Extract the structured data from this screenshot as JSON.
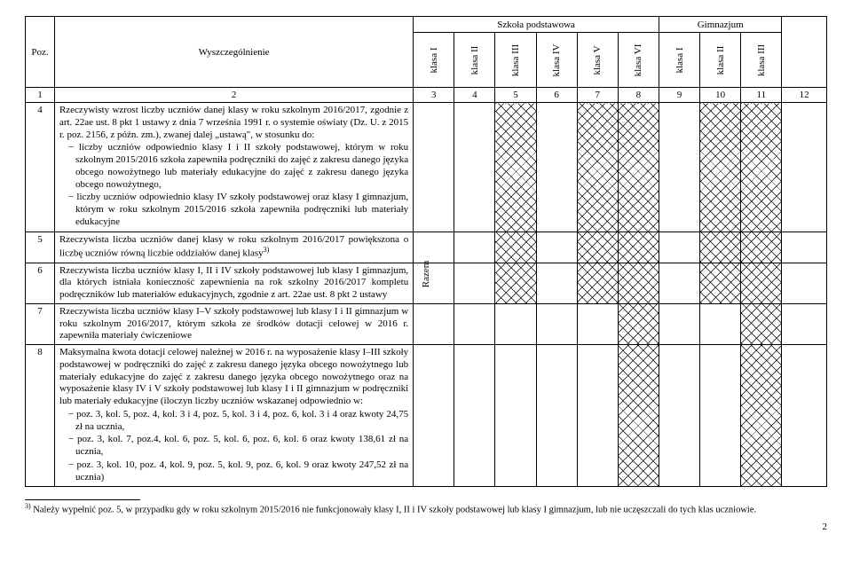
{
  "header": {
    "poz": "Poz.",
    "wys": "Wyszczególnienie",
    "group1": "Szkoła podstawowa",
    "group2": "Gimnazjum",
    "razem": "Razem",
    "klasy": [
      "klasa I",
      "klasa II",
      "klasa III",
      "klasa IV",
      "klasa V",
      "klasa VI",
      "klasa I",
      "klasa II",
      "klasa III"
    ]
  },
  "numrow": [
    "1",
    "2",
    "3",
    "4",
    "5",
    "6",
    "7",
    "8",
    "9",
    "10",
    "11",
    "12"
  ],
  "rows": [
    {
      "poz": "4",
      "desc_plain": "Rzeczywisty wzrost liczby uczniów danej klasy w roku szkolnym 2016/2017, zgodnie z art. 22ae ust. 8 pkt 1 ustawy z dnia 7 września 1991 r. o systemie oświaty (Dz. U. z 2015 r. poz. 2156, z późn. zm.), zwanej dalej „ustawą\", w stosunku do:",
      "bullets": [
        "liczby uczniów odpowiednio klasy I i II szkoły podstawowej, którym w roku szkolnym 2015/2016 szkoła zapewniła podręczniki do zajęć z zakresu danego języka obcego nowożytnego lub materiały edukacyjne do zajęć z zakresu danego języka obcego nowożytnego,",
        "liczby uczniów odpowiednio klasy IV szkoły podstawowej oraz klasy I gimnazjum, którym w roku szkolnym 2015/2016 szkoła zapewniła podręczniki lub materiały edukacyjne"
      ],
      "hatch_cols": [
        2,
        4,
        5,
        7,
        8
      ]
    },
    {
      "poz": "5",
      "desc_plain": "Rzeczywista liczba uczniów danej klasy w roku szkolnym 2016/2017 powiększona o liczbę uczniów równą liczbie oddziałów danej klasy",
      "sup": "3)",
      "hatch_cols": [
        2,
        4,
        5,
        7,
        8
      ]
    },
    {
      "poz": "6",
      "desc_plain": "Rzeczywista liczba uczniów klasy I, II i IV szkoły podstawowej lub klasy I gimnazjum, dla których istniała konieczność zapewnienia na rok szkolny 2016/2017 kompletu podręczników lub materiałów edukacyjnych, zgodnie z art. 22ae ust. 8 pkt 2 ustawy",
      "hatch_cols": [
        2,
        4,
        5,
        7,
        8
      ]
    },
    {
      "poz": "7",
      "desc_plain": "Rzeczywista liczba uczniów klasy I–V szkoły podstawowej lub klasy I i II gimnazjum w roku szkolnym 2016/2017, którym szkoła ze środków dotacji celowej w 2016 r. zapewniła materiały ćwiczeniowe",
      "hatch_cols": [
        5,
        8
      ]
    },
    {
      "poz": "8",
      "desc_plain": "Maksymalna kwota dotacji celowej należnej w 2016 r. na wyposażenie klasy I–III szkoły podstawowej w podręczniki do zajęć z zakresu danego języka obcego nowożytnego lub materiały edukacyjne do zajęć z zakresu danego języka obcego nowożytnego oraz na wyposażenie klasy IV i V szkoły podstawowej lub klasy I i II gimnazjum w podręczniki lub materiały edukacyjne (iloczyn liczby uczniów wskazanej odpowiednio w:",
      "bullets2": [
        "poz. 3, kol. 5, poz. 4, kol. 3 i 4, poz. 5, kol. 3 i 4, poz. 6, kol. 3 i 4 oraz kwoty 24,75 zł na ucznia,",
        "poz. 3, kol. 7, poz.4, kol. 6, poz. 5, kol. 6, poz. 6, kol. 6 oraz kwoty 138,61 zł na ucznia,",
        "poz. 3, kol. 10, poz. 4, kol. 9, poz. 5, kol. 9, poz. 6, kol. 9 oraz kwoty 247,52 zł na ucznia)"
      ],
      "hatch_cols": [
        5,
        8
      ]
    }
  ],
  "footnote": {
    "mark": "3)",
    "text": "Należy wypełnić poz. 5, w przypadku gdy w roku szkolnym 2015/2016 nie funkcjonowały klasy I, II i IV szkoły podstawowej lub klasy I gimnazjum, lub nie uczęszczali do tych klas uczniowie."
  },
  "page_number": "2"
}
